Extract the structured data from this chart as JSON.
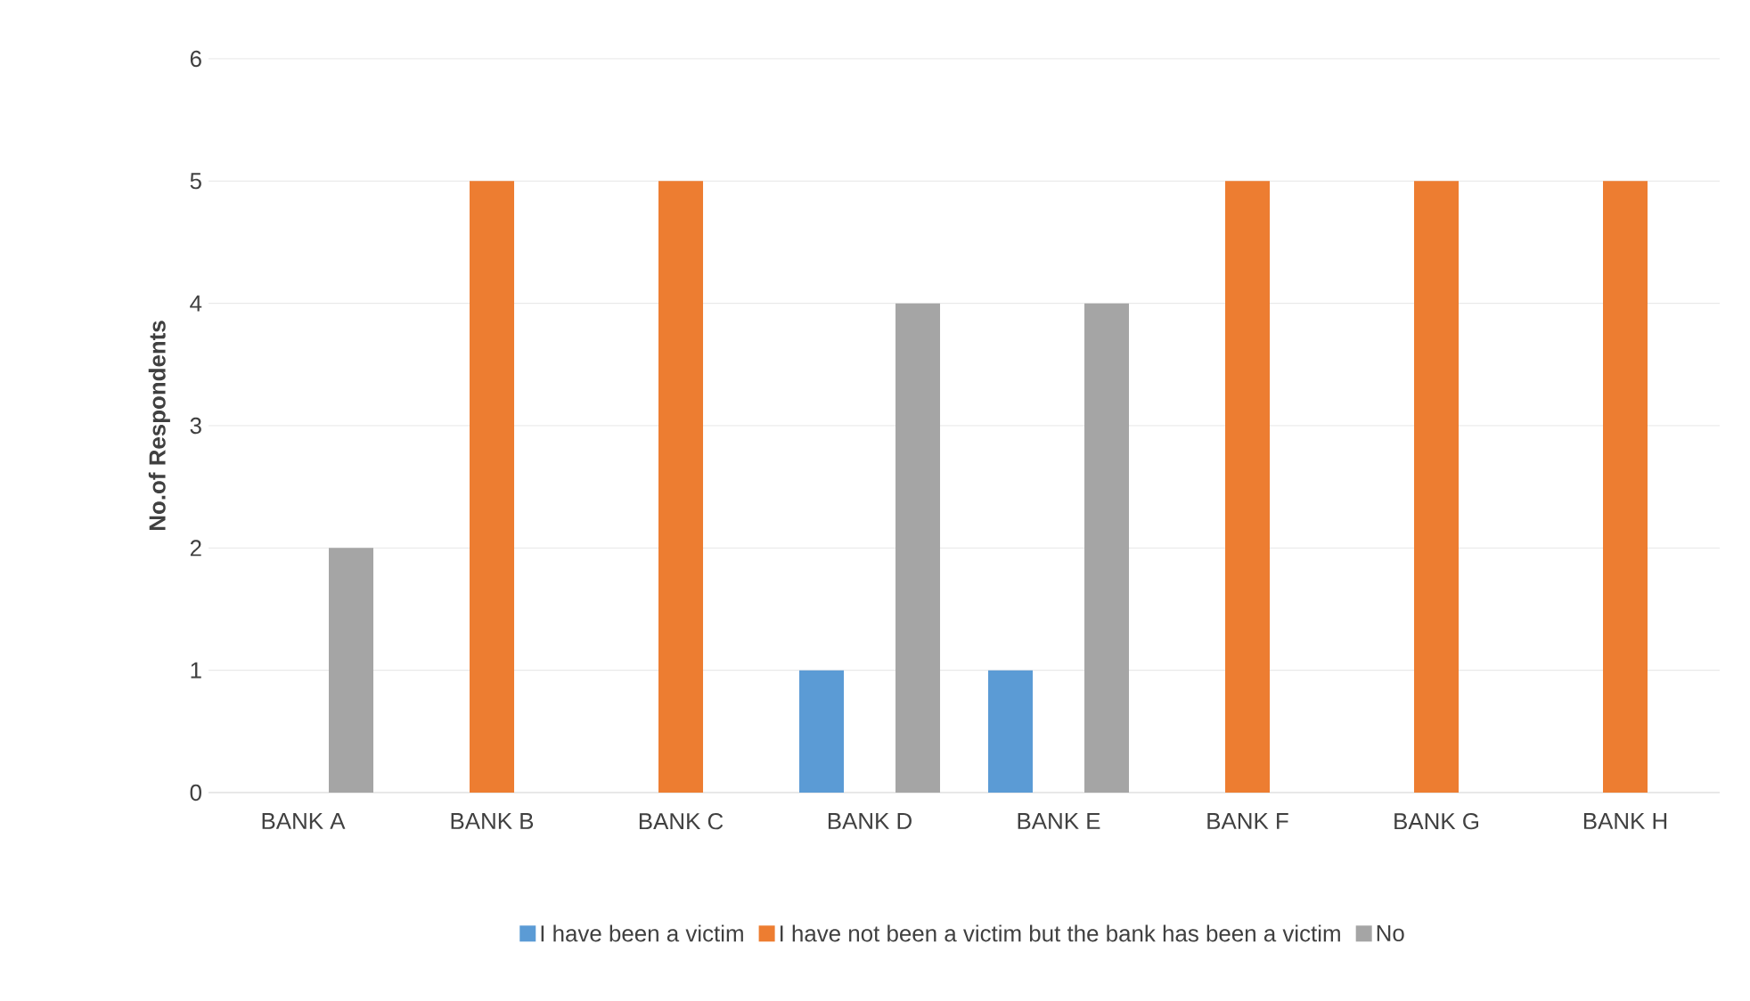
{
  "chart_data": {
    "type": "bar",
    "ylabel": "No.of Respondents",
    "categories": [
      "BANK A",
      "BANK B",
      "BANK C",
      "BANK D",
      "BANK E",
      "BANK F",
      "BANK G",
      "BANK H"
    ],
    "series": [
      {
        "name": "I have been a victim",
        "color": "#5b9bd5",
        "values": [
          0,
          0,
          0,
          1,
          1,
          0,
          0,
          0
        ]
      },
      {
        "name": "I have not been a victim but the bank has been a victim",
        "color": "#ed7d31",
        "values": [
          0,
          5,
          5,
          0,
          0,
          5,
          5,
          5
        ]
      },
      {
        "name": "No",
        "color": "#a5a5a5",
        "values": [
          2,
          0,
          0,
          4,
          4,
          0,
          0,
          0
        ]
      }
    ],
    "ylim": [
      0,
      6
    ],
    "yticks": [
      0,
      1,
      2,
      3,
      4,
      5,
      6
    ],
    "grid": "y",
    "legend": "bottom"
  }
}
